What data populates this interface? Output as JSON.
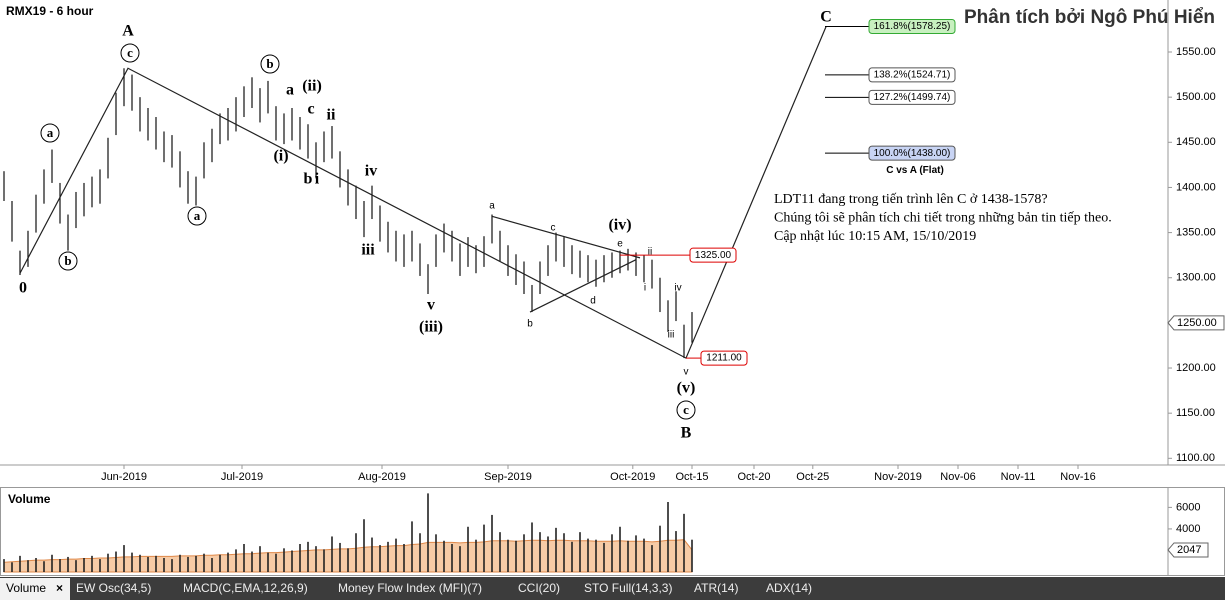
{
  "chart_data": [
    {
      "type": "ohlc",
      "title": "RMX19 - 6 hour",
      "credit": "Phân tích bởi Ngô Phú Hiển",
      "high": [
        1418,
        1385,
        1330,
        1352,
        1392,
        1420,
        1442,
        1405,
        1370,
        1395,
        1405,
        1412,
        1420,
        1455,
        1505,
        1532,
        1525,
        1500,
        1488,
        1478,
        1462,
        1458,
        1440,
        1418,
        1412,
        1450,
        1465,
        1482,
        1488,
        1500,
        1512,
        1522,
        1510,
        1518,
        1490,
        1482,
        1488,
        1478,
        1470,
        1450,
        1462,
        1468,
        1440,
        1420,
        1402,
        1385,
        1402,
        1380,
        1362,
        1352,
        1348,
        1352,
        1338,
        1315,
        1348,
        1360,
        1352,
        1338,
        1345,
        1336,
        1346,
        1370,
        1352,
        1336,
        1326,
        1318,
        1292,
        1318,
        1336,
        1350,
        1345,
        1336,
        1330,
        1325,
        1320,
        1325,
        1328,
        1330,
        1332,
        1328,
        1325,
        1320,
        1300,
        1275,
        1285,
        1248,
        1262
      ],
      "low": [
        1385,
        1340,
        1303,
        1312,
        1350,
        1382,
        1405,
        1360,
        1330,
        1355,
        1368,
        1378,
        1382,
        1410,
        1458,
        1490,
        1485,
        1462,
        1452,
        1442,
        1428,
        1422,
        1400,
        1382,
        1380,
        1410,
        1428,
        1448,
        1452,
        1462,
        1478,
        1488,
        1472,
        1482,
        1452,
        1448,
        1452,
        1442,
        1432,
        1410,
        1428,
        1432,
        1400,
        1380,
        1365,
        1345,
        1365,
        1340,
        1328,
        1318,
        1312,
        1318,
        1302,
        1282,
        1312,
        1328,
        1318,
        1302,
        1312,
        1305,
        1312,
        1338,
        1318,
        1302,
        1292,
        1282,
        1262,
        1282,
        1302,
        1318,
        1312,
        1304,
        1300,
        1295,
        1290,
        1295,
        1300,
        1305,
        1308,
        1302,
        1295,
        1288,
        1262,
        1240,
        1252,
        1211,
        1228
      ],
      "xlim": [
        -0.5,
        145.5
      ],
      "xticks": [
        {
          "value": 15,
          "label": "Jun-2019"
        },
        {
          "value": 29.75,
          "label": "Jul-2019"
        },
        {
          "value": 47.25,
          "label": "Aug-2019"
        },
        {
          "value": 63,
          "label": "Sep-2019"
        },
        {
          "value": 78.6,
          "label": "Oct-2019"
        },
        {
          "value": 86,
          "label": "Oct-15"
        },
        {
          "value": 93.75,
          "label": "Oct-20"
        },
        {
          "value": 101.1,
          "label": "Oct-25"
        },
        {
          "value": 111.75,
          "label": "Nov-2019"
        },
        {
          "value": 119.25,
          "label": "Nov-06"
        },
        {
          "value": 126.75,
          "label": "Nov-11"
        },
        {
          "value": 134.25,
          "label": "Nov-16"
        }
      ],
      "ylim": [
        1092.6,
        1607.6
      ],
      "yticks": [
        {
          "value": 1100,
          "label": "1100.00"
        },
        {
          "value": 1150,
          "label": "1150.00"
        },
        {
          "value": 1200,
          "label": "1200.00"
        },
        {
          "value": 1250,
          "label": "1250.00"
        },
        {
          "value": 1300,
          "label": "1300.00"
        },
        {
          "value": 1350,
          "label": "1350.00"
        },
        {
          "value": 1400,
          "label": "1400.00"
        },
        {
          "value": 1450,
          "label": "1450.00"
        },
        {
          "value": 1500,
          "label": "1500.00"
        },
        {
          "value": 1550,
          "label": "1550.00"
        }
      ],
      "last_price": {
        "value": 1250,
        "label": "1250.00"
      },
      "wave_lines": [
        {
          "x": [
            2,
            15.5,
            85.25,
            102.75
          ],
          "y": [
            1305,
            1532,
            1211,
            1578
          ]
        },
        {
          "x": [
            61,
            79.5
          ],
          "y": [
            1368,
            1322
          ]
        },
        {
          "x": [
            65.75,
            79
          ],
          "y": [
            1262,
            1320
          ]
        }
      ],
      "wave_labels": [
        "0",
        "a",
        "b",
        "A",
        "c",
        "a",
        "b",
        "a",
        "(ii)",
        "c",
        "ii",
        "(i)",
        "b",
        "i",
        "iv",
        "iii",
        "v",
        "(iii)",
        "a",
        "b",
        "c",
        "d",
        "e",
        "(iv)",
        "ii",
        "i",
        "iv",
        "iii",
        "v",
        "(v)",
        "c",
        "B",
        "C"
      ],
      "fib_levels": [
        {
          "value": 1578.25,
          "label": "161.8%(1578.25)"
        },
        {
          "value": 1524.71,
          "label": "138.2%(1524.71)"
        },
        {
          "value": 1499.74,
          "label": "127.2%(1499.74)"
        },
        {
          "value": 1438,
          "label": "100.0%(1438.00)"
        }
      ],
      "fib_note": "C vs A (Flat)",
      "levels": [
        {
          "value": 1325,
          "label": "1325.00"
        },
        {
          "value": 1211,
          "label": "1211.00"
        }
      ],
      "annotation": [
        "LDT11 đang trong tiến trình lên C ở 1438-1578?",
        "Chúng tôi sẽ phân tích chi tiết trong những bản tin tiếp theo.",
        "Cập nhật lúc 10:15 AM, 15/10/2019"
      ]
    },
    {
      "type": "volume",
      "title": "Volume",
      "values": [
        1200,
        900,
        1500,
        1100,
        1300,
        1000,
        1600,
        1200,
        1400,
        1100,
        1300,
        1500,
        1200,
        1700,
        1900,
        2500,
        1800,
        1600,
        1400,
        1500,
        1300,
        1200,
        1600,
        1400,
        1500,
        1700,
        1300,
        1600,
        1800,
        2100,
        2600,
        1900,
        2400,
        1800,
        1700,
        2200,
        2000,
        2600,
        2800,
        2400,
        2100,
        3300,
        2700,
        2200,
        3600,
        4900,
        3200,
        2500,
        2800,
        3100,
        2600,
        4700,
        3600,
        7300,
        3500,
        2900,
        2600,
        2400,
        4200,
        3000,
        4400,
        5300,
        3700,
        3000,
        2900,
        3500,
        4600,
        3700,
        3300,
        4100,
        3600,
        2800,
        3700,
        3100,
        3000,
        2700,
        3500,
        4200,
        2900,
        3400,
        3100,
        2500,
        4300,
        6500,
        3800,
        5400,
        3000
      ],
      "ma": [
        900,
        950,
        1000,
        1050,
        1100,
        1100,
        1150,
        1150,
        1200,
        1200,
        1250,
        1250,
        1300,
        1300,
        1350,
        1400,
        1400,
        1450,
        1450,
        1450,
        1450,
        1450,
        1500,
        1500,
        1500,
        1550,
        1550,
        1600,
        1600,
        1650,
        1700,
        1700,
        1750,
        1800,
        1800,
        1850,
        1900,
        1950,
        2000,
        2050,
        2050,
        2100,
        2150,
        2150,
        2200,
        2300,
        2350,
        2350,
        2400,
        2450,
        2450,
        2550,
        2600,
        2750,
        2750,
        2750,
        2750,
        2700,
        2750,
        2750,
        2800,
        2900,
        2900,
        2900,
        2850,
        2900,
        2950,
        2950,
        2900,
        2950,
        2950,
        2900,
        2900,
        2900,
        2850,
        2850,
        2850,
        2900,
        2850,
        2850,
        2850,
        2800,
        2850,
        2950,
        2950,
        3000,
        2047
      ],
      "ylim": [
        0,
        7800
      ],
      "yticks": [
        4000,
        6000
      ],
      "last_value": 2047
    }
  ],
  "tabs": [
    "Volume",
    "EW Osc(34,5)",
    "MACD(C,EMA,12,26,9)",
    "Money Flow Index (MFI)(7)",
    "CCI(20)",
    "STO Full(14,3,3)",
    "ATR(14)",
    "ADX(14)"
  ]
}
